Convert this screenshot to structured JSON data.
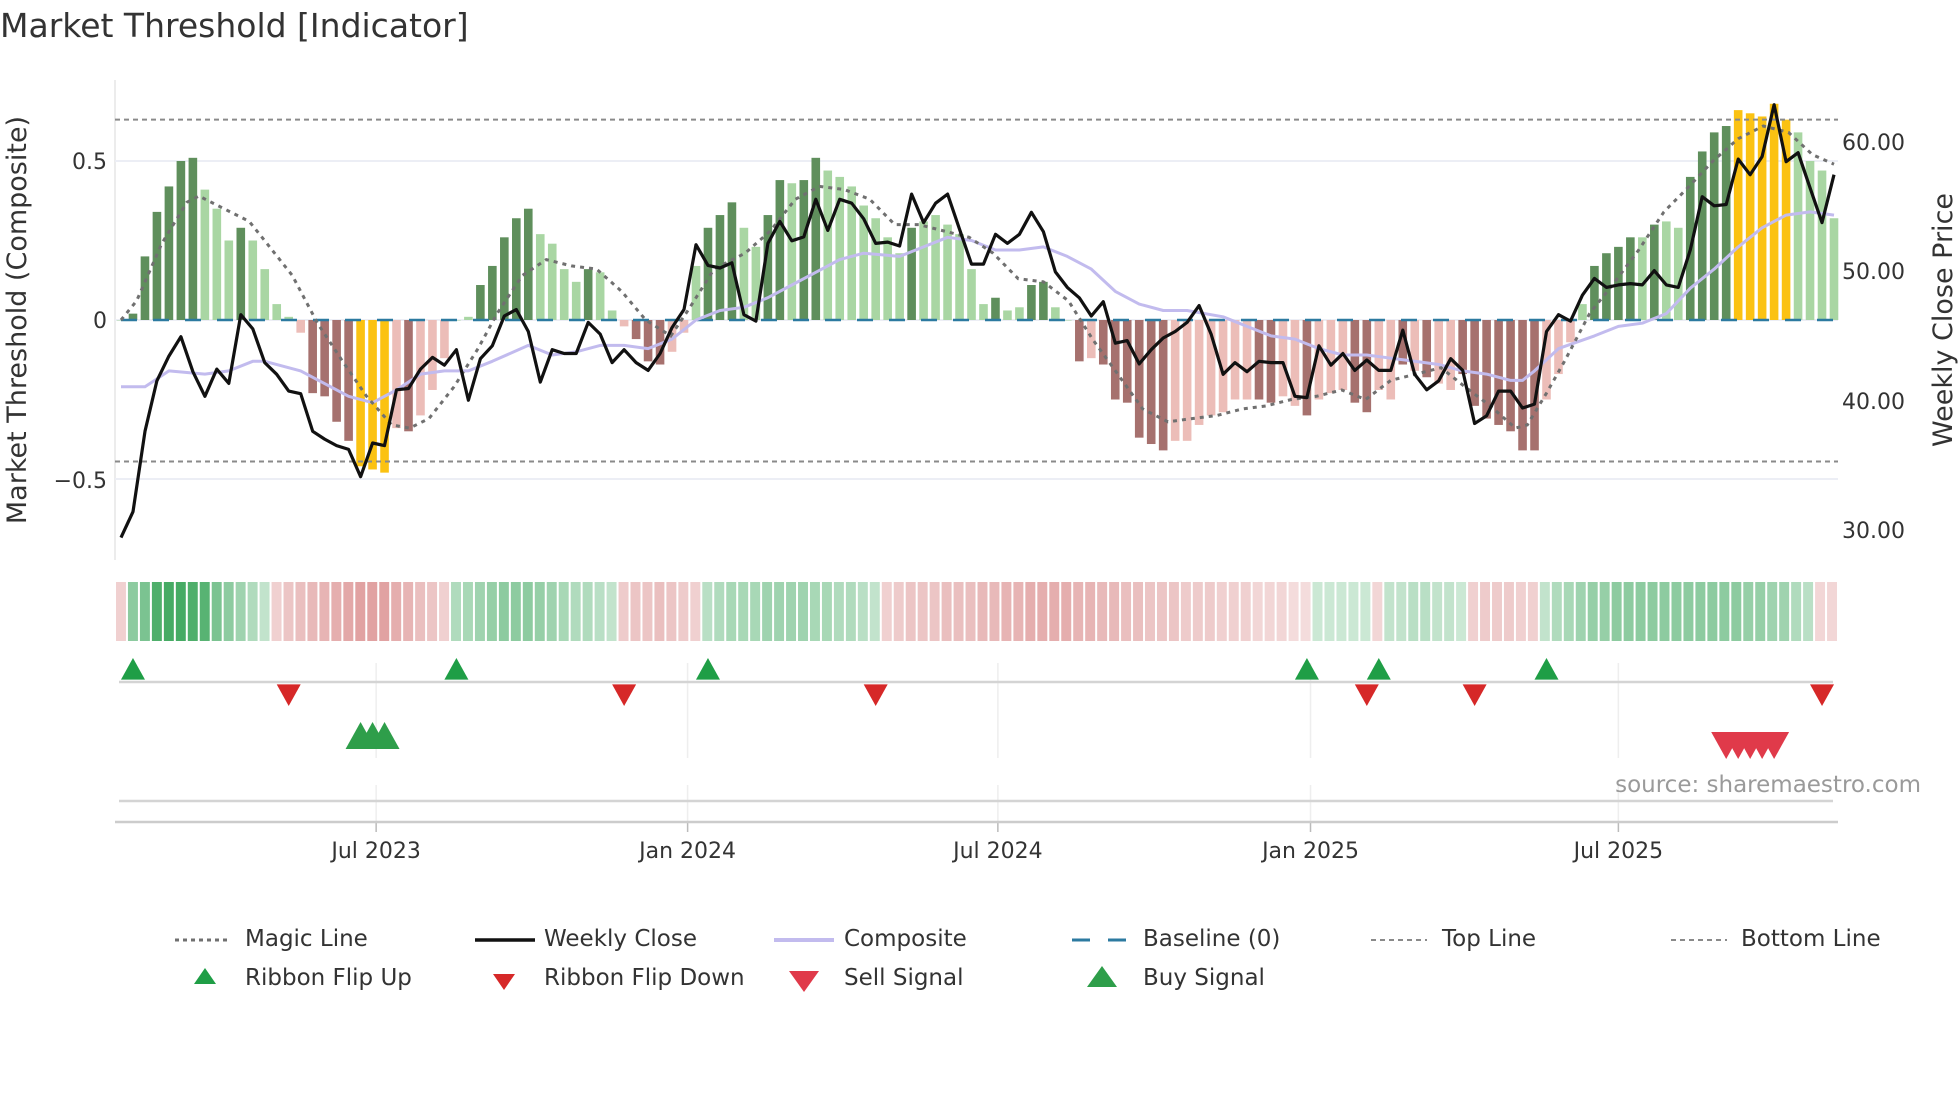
{
  "title": "Market Threshold [Indicator]",
  "source": "source: sharemaestro.com",
  "chart_data": {
    "type": "bar",
    "title": "Market Threshold [Indicator]",
    "ylabel": "Market Threshold (Composite)",
    "y2label": "Weekly Close Price",
    "ylim": [
      -0.69,
      0.74
    ],
    "y2lim": [
      28.0,
      62.6
    ],
    "yticks": [
      "0.5",
      "0",
      "−0.5"
    ],
    "ytick_values": [
      0.5,
      0,
      -0.5
    ],
    "y2ticks": [
      "60.00",
      "50.00",
      "40.00",
      "30.00"
    ],
    "y2tick_values": [
      60,
      50,
      40,
      30
    ],
    "xticks": [
      "Jul 2023",
      "Jan 2024",
      "Jul 2024",
      "Jan 2025",
      "Jul 2025"
    ],
    "xtick_weeks": [
      21.3,
      47.3,
      73.2,
      99.3,
      125.0
    ],
    "top_line": 0.63,
    "bottom_line": -0.445,
    "baseline": 0,
    "histogram": [
      0,
      0.02,
      0.2,
      0.34,
      0.42,
      0.5,
      0.51,
      0.41,
      0.35,
      0.25,
      0.29,
      0.25,
      0.16,
      0.05,
      0.01,
      -0.04,
      -0.23,
      -0.24,
      -0.32,
      -0.38,
      -0.46,
      -0.47,
      -0.48,
      -0.34,
      -0.35,
      -0.3,
      -0.22,
      -0.12,
      0.0,
      0.01,
      0.11,
      0.17,
      0.26,
      0.32,
      0.35,
      0.27,
      0.24,
      0.16,
      0.12,
      0.16,
      0.15,
      0.03,
      -0.02,
      -0.06,
      -0.13,
      -0.14,
      -0.1,
      -0.04,
      0.17,
      0.29,
      0.33,
      0.37,
      0.29,
      0.23,
      0.33,
      0.44,
      0.43,
      0.44,
      0.51,
      0.47,
      0.45,
      0.42,
      0.36,
      0.32,
      0.26,
      0.21,
      0.29,
      0.31,
      0.33,
      0.3,
      0.27,
      0.16,
      0.05,
      0.07,
      0.03,
      0.04,
      0.11,
      0.12,
      0.04,
      0.0,
      -0.13,
      -0.12,
      -0.14,
      -0.25,
      -0.26,
      -0.37,
      -0.39,
      -0.41,
      -0.38,
      -0.38,
      -0.33,
      -0.3,
      -0.29,
      -0.25,
      -0.25,
      -0.25,
      -0.26,
      -0.24,
      -0.27,
      -0.3,
      -0.25,
      -0.23,
      -0.22,
      -0.26,
      -0.29,
      -0.22,
      -0.25,
      -0.14,
      -0.16,
      -0.18,
      -0.2,
      -0.22,
      -0.17,
      -0.27,
      -0.31,
      -0.33,
      -0.35,
      -0.41,
      -0.41,
      -0.25,
      -0.17,
      -0.07,
      0.05,
      0.17,
      0.21,
      0.23,
      0.26,
      0.26,
      0.3,
      0.31,
      0.29,
      0.45,
      0.53,
      0.59,
      0.61,
      0.66,
      0.65,
      0.64,
      0.68,
      0.63,
      0.59,
      0.5,
      0.47,
      0.32
    ],
    "histogram_style": "LDDDDDDLLLDLLLLLDDDDYYYLDLLLLLDDDDDLLLLDLLLDDDLLLDDDLLDDLDDLLLLLLLDLLLLLLDLLDDLLDLDDDDDDLLLLLLLDDLLDLLLDDLLDLDLLDDDDDDDLLLLDDDDLDLLDDDDYYYYYLLLL",
    "weekly_close": [
      29.4,
      31.4,
      37.6,
      41.5,
      43.4,
      44.9,
      42.2,
      40.3,
      42.4,
      41.3,
      46.6,
      45.5,
      42.9,
      42.0,
      40.7,
      40.5,
      37.6,
      37.0,
      36.5,
      36.2,
      34.1,
      36.7,
      36.5,
      40.8,
      40.9,
      42.4,
      43.3,
      42.7,
      43.9,
      40.0,
      43.2,
      44.2,
      46.5,
      47.0,
      45.3,
      41.4,
      43.9,
      43.6,
      43.6,
      46.0,
      45.1,
      42.9,
      43.9,
      42.9,
      42.3,
      43.6,
      45.6,
      47.0,
      52.0,
      50.4,
      50.2,
      50.6,
      46.6,
      46.1,
      52.1,
      53.8,
      52.3,
      52.6,
      55.5,
      53.1,
      55.5,
      55.2,
      54.0,
      52.1,
      52.2,
      51.9,
      55.9,
      53.7,
      55.2,
      55.9,
      53.2,
      50.5,
      50.5,
      52.8,
      52.1,
      52.8,
      54.5,
      53.0,
      49.9,
      48.7,
      47.9,
      46.5,
      47.6,
      44.4,
      44.6,
      42.8,
      43.9,
      44.8,
      45.3,
      46.0,
      47.3,
      45.1,
      42.0,
      42.9,
      42.2,
      43.0,
      42.9,
      42.9,
      40.3,
      40.2,
      44.2,
      42.7,
      43.6,
      42.3,
      43.1,
      42.3,
      42.3,
      45.4,
      42.0,
      40.8,
      41.5,
      43.2,
      42.3,
      38.2,
      38.8,
      40.7,
      40.7,
      39.4,
      39.7,
      45.3,
      46.6,
      46.1,
      48.1,
      49.4,
      48.7,
      48.9,
      49.0,
      48.9,
      50.0,
      48.9,
      48.7,
      51.6,
      55.7,
      55.0,
      55.1,
      58.6,
      57.4,
      58.8,
      62.8,
      58.4,
      59.1,
      56.4,
      53.7,
      57.4
    ],
    "composite": {
      "weeks": [
        0,
        2,
        4,
        7,
        9,
        11,
        12,
        15,
        17,
        19,
        21,
        23,
        25,
        27,
        29,
        31,
        34,
        36,
        38,
        40,
        42,
        44,
        46,
        48,
        50,
        52,
        54,
        56,
        58,
        60,
        62,
        65,
        67,
        69,
        71,
        73,
        75,
        77,
        79,
        81,
        83,
        85,
        87,
        89,
        92,
        94,
        96,
        98,
        100,
        102,
        104,
        106,
        108,
        110,
        112,
        114,
        116,
        117,
        118,
        120,
        123,
        125,
        127,
        129,
        131,
        133,
        135,
        137,
        139,
        141,
        143
      ],
      "values": [
        -0.21,
        -0.21,
        -0.16,
        -0.17,
        -0.16,
        -0.13,
        -0.13,
        -0.16,
        -0.2,
        -0.24,
        -0.26,
        -0.22,
        -0.17,
        -0.16,
        -0.16,
        -0.13,
        -0.08,
        -0.11,
        -0.1,
        -0.08,
        -0.08,
        -0.09,
        -0.06,
        0.0,
        0.03,
        0.04,
        0.07,
        0.11,
        0.15,
        0.19,
        0.21,
        0.2,
        0.23,
        0.26,
        0.25,
        0.22,
        0.22,
        0.23,
        0.2,
        0.16,
        0.09,
        0.05,
        0.03,
        0.03,
        0.01,
        -0.02,
        -0.05,
        -0.06,
        -0.09,
        -0.11,
        -0.11,
        -0.12,
        -0.13,
        -0.14,
        -0.16,
        -0.17,
        -0.19,
        -0.19,
        -0.16,
        -0.09,
        -0.05,
        -0.02,
        -0.01,
        0.02,
        0.1,
        0.16,
        0.23,
        0.29,
        0.33,
        0.34,
        0.33
      ]
    },
    "magic_line": {
      "weeks": [
        0,
        1.3,
        3.4,
        5.5,
        6.5,
        8.6,
        10.7,
        12.2,
        14.3,
        16.4,
        18.5,
        20.5,
        22.6,
        24.1,
        25.7,
        27.8,
        29.8,
        31.4,
        33.5,
        35.5,
        37.6,
        39.7,
        41.8,
        43.8,
        45.9,
        47.5,
        49.5,
        52.1,
        54.2,
        56.3,
        58.3,
        60.4,
        62.5,
        64.6,
        66.6,
        68.7,
        70.8,
        72.8,
        74.9,
        77,
        79.1,
        81.1,
        83.2,
        85.3,
        87.4,
        89.4,
        91.5,
        93.6,
        95.6,
        97.7,
        99.8,
        101.9,
        103.9,
        106,
        108.1,
        110.2,
        112.2,
        114.3,
        116.4,
        117.4,
        119,
        120.5,
        122.6,
        124.7,
        126.7,
        128.8,
        130.9,
        132.9,
        135,
        137.1,
        139.2,
        141.2,
        143
      ],
      "values": [
        0.0,
        0.06,
        0.24,
        0.37,
        0.39,
        0.35,
        0.31,
        0.24,
        0.14,
        -0.01,
        -0.13,
        -0.24,
        -0.33,
        -0.34,
        -0.31,
        -0.21,
        -0.09,
        0.02,
        0.14,
        0.19,
        0.17,
        0.16,
        0.09,
        0.0,
        -0.05,
        0.04,
        0.16,
        0.21,
        0.28,
        0.38,
        0.42,
        0.41,
        0.38,
        0.3,
        0.3,
        0.28,
        0.26,
        0.21,
        0.13,
        0.12,
        0.06,
        -0.06,
        -0.17,
        -0.28,
        -0.32,
        -0.31,
        -0.3,
        -0.28,
        -0.27,
        -0.25,
        -0.24,
        -0.22,
        -0.25,
        -0.19,
        -0.17,
        -0.15,
        -0.21,
        -0.27,
        -0.34,
        -0.33,
        -0.23,
        -0.13,
        0.02,
        0.12,
        0.22,
        0.34,
        0.42,
        0.5,
        0.57,
        0.61,
        0.59,
        0.52,
        0.49
      ]
    },
    "ribbon": [
      -0.2,
      0.5,
      0.6,
      0.85,
      0.9,
      0.9,
      0.85,
      0.8,
      0.6,
      0.5,
      0.4,
      0.3,
      0.2,
      -0.2,
      -0.3,
      -0.35,
      -0.4,
      -0.45,
      -0.5,
      -0.55,
      -0.6,
      -0.6,
      -0.6,
      -0.5,
      -0.45,
      -0.35,
      -0.3,
      -0.2,
      0.3,
      0.35,
      0.4,
      0.45,
      0.5,
      0.5,
      0.5,
      0.45,
      0.4,
      0.35,
      0.3,
      0.3,
      0.25,
      0.2,
      -0.25,
      -0.3,
      -0.3,
      -0.35,
      -0.3,
      -0.25,
      -0.2,
      0.25,
      0.3,
      0.35,
      0.35,
      0.35,
      0.4,
      0.4,
      0.4,
      0.4,
      0.35,
      0.35,
      0.3,
      0.3,
      0.25,
      0.2,
      -0.2,
      -0.25,
      -0.3,
      -0.3,
      -0.3,
      -0.35,
      -0.35,
      -0.35,
      -0.4,
      -0.4,
      -0.45,
      -0.45,
      -0.5,
      -0.5,
      -0.5,
      -0.5,
      -0.45,
      -0.45,
      -0.4,
      -0.4,
      -0.35,
      -0.35,
      -0.3,
      -0.3,
      -0.3,
      -0.25,
      -0.25,
      -0.25,
      -0.2,
      -0.2,
      -0.2,
      -0.15,
      -0.15,
      -0.15,
      -0.1,
      -0.1,
      0.15,
      0.15,
      0.15,
      0.15,
      0.15,
      -0.15,
      0.2,
      0.2,
      0.25,
      0.25,
      0.2,
      0.2,
      0.15,
      -0.2,
      -0.25,
      -0.25,
      -0.25,
      -0.2,
      -0.2,
      0.2,
      0.3,
      0.35,
      0.4,
      0.45,
      0.45,
      0.5,
      0.5,
      0.5,
      0.5,
      0.5,
      0.5,
      0.5,
      0.5,
      0.5,
      0.5,
      0.5,
      0.45,
      0.45,
      0.4,
      0.4,
      0.3,
      0.25,
      -0.15,
      -0.15
    ],
    "ribbon_flip_up_weeks": [
      1,
      28,
      49,
      99,
      105,
      119
    ],
    "ribbon_flip_down_weeks": [
      14,
      42,
      63,
      104,
      113,
      142
    ],
    "buy_signal_weeks": [
      20,
      21,
      22
    ],
    "sell_signal_weeks": [
      134,
      135,
      136,
      137,
      138
    ],
    "colors": {
      "pos_dark": "#5f8f5c",
      "pos_light": "#a9d6a3",
      "neg_dark": "#a6716e",
      "neg_light": "#ecbdb8",
      "extreme": "#fbc212",
      "close": "#111111",
      "composite": "#c2bbee",
      "magic": "#707070",
      "baseline": "#2c7aa0",
      "threshold": "#8a8a8a",
      "flip_up": "#1f9e46",
      "flip_down": "#d62828",
      "sell": "#e03a4a",
      "buy": "#2e9e4a"
    },
    "legend": [
      {
        "label": "Magic Line",
        "kind": "dotted"
      },
      {
        "label": "Weekly Close",
        "kind": "solid"
      },
      {
        "label": "Composite",
        "kind": "lavender"
      },
      {
        "label": "Baseline (0)",
        "kind": "dashed"
      },
      {
        "label": "Top Line",
        "kind": "thin-dotted"
      },
      {
        "label": "Bottom Line",
        "kind": "thin-dotted"
      },
      {
        "label": "Ribbon Flip Up",
        "kind": "tri-up-small"
      },
      {
        "label": "Ribbon Flip Down",
        "kind": "tri-down-small"
      },
      {
        "label": "Sell Signal",
        "kind": "tri-down-big"
      },
      {
        "label": "Buy Signal",
        "kind": "tri-up-big"
      }
    ]
  }
}
